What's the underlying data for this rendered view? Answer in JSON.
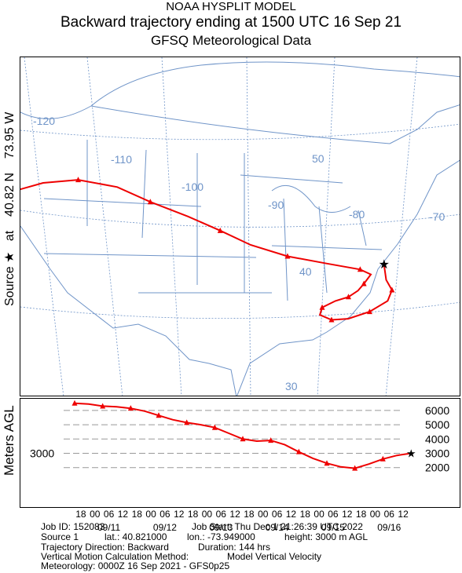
{
  "titles": {
    "line1": "NOAA HYSPLIT MODEL",
    "line2": "Backward trajectory ending at 1500 UTC 16 Sep 21",
    "line3": "GFSQ Meteorological Data"
  },
  "source_axis_label": {
    "prefix": "Source",
    "star": "★",
    "at": "at",
    "lat": "40.82 N",
    "lon": "73.95 W"
  },
  "profile_axis_label": "Meters AGL",
  "map": {
    "lon_labels": [
      "-120",
      "-110",
      "-100",
      "-90",
      "-80",
      "-70"
    ],
    "lat_labels": [
      "50",
      "40",
      "30"
    ],
    "colors": {
      "boundaries": "#6f94c8",
      "grid": "#6f94c8",
      "trajectory": "#ee0000"
    },
    "trajectory": {
      "start_lat": 40.82,
      "start_lon": -73.95,
      "path": [
        [
          40.82,
          -73.95
        ],
        [
          38.8,
          -73.6
        ],
        [
          37.5,
          -72.9
        ],
        [
          36.2,
          -73.3
        ],
        [
          35.0,
          -75.2
        ],
        [
          34.3,
          -77.5
        ],
        [
          34.3,
          -79.3
        ],
        [
          35.0,
          -80.6
        ],
        [
          35.9,
          -80.4
        ],
        [
          36.6,
          -79.0
        ],
        [
          37.0,
          -77.6
        ],
        [
          37.7,
          -76.6
        ],
        [
          38.5,
          -76.0
        ],
        [
          39.6,
          -75.3
        ],
        [
          40.3,
          -76.5
        ],
        [
          41.3,
          -80.2
        ],
        [
          42.5,
          -84.5
        ],
        [
          44.2,
          -88.6
        ],
        [
          46.2,
          -92.0
        ],
        [
          48.2,
          -95.6
        ],
        [
          50.3,
          -99.8
        ],
        [
          52.4,
          -103.5
        ],
        [
          53.6,
          -107.8
        ],
        [
          53.5,
          -111.6
        ],
        [
          52.6,
          -115.2
        ]
      ]
    }
  },
  "profile": {
    "y_ticks": [
      "6000",
      "5000",
      "4000",
      "3000",
      "2000"
    ],
    "source_height_label": "3000",
    "star": "★",
    "hour_ticks": [
      "12",
      "06",
      "00",
      "18",
      "12",
      "06",
      "00",
      "18",
      "12",
      "06",
      "00",
      "18",
      "12",
      "06",
      "00",
      "18",
      "12",
      "06",
      "00",
      "18",
      "12",
      "06",
      "00",
      "18"
    ],
    "date_labels": [
      "09/16",
      "09/15",
      "09/14",
      "09/13",
      "09/12",
      "09/11"
    ]
  },
  "chart_data": {
    "type": "line",
    "xlabel": "",
    "ylabel": "Meters AGL",
    "ylim": [
      1700,
      6600
    ],
    "x": [
      0,
      6,
      12,
      18,
      24,
      30,
      36,
      42,
      48,
      54,
      60,
      66,
      72,
      78,
      84,
      90,
      96,
      102,
      108,
      114,
      120,
      126,
      132,
      138,
      144
    ],
    "series": [
      {
        "values": [
          3000,
          2850,
          2600,
          2250,
          1950,
          2050,
          2300,
          2650,
          3100,
          3600,
          3900,
          3850,
          4000,
          4400,
          4800,
          5000,
          5150,
          5350,
          5650,
          5950,
          6150,
          6250,
          6300,
          6450,
          6500
        ]
      }
    ]
  },
  "info": {
    "job_id": "Job ID: 152083",
    "job_start": "Job Start: Thu Dec  1 21:26:39 UTC 2022",
    "source": "Source 1",
    "lat": "lat.: 40.821000",
    "lon": "lon.: -73.949000",
    "height": "height: 3000 m AGL",
    "direction": "Trajectory Direction: Backward",
    "duration": "Duration: 144 hrs",
    "vertical_method": "Vertical Motion Calculation Method:",
    "vertical_value": "Model Vertical Velocity",
    "meteorology": "Meteorology: 0000Z 16 Sep 2021 - GFS0p25"
  }
}
